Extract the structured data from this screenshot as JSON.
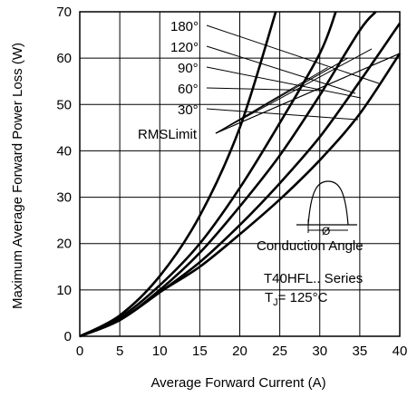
{
  "chart_data": {
    "type": "line",
    "title": "",
    "xlabel": "Average Forward Current (A)",
    "ylabel": "Maximum Average Forward Power Loss (W)",
    "xlim": [
      0,
      40
    ],
    "ylim": [
      0,
      70
    ],
    "x_ticks": [
      0,
      5,
      10,
      15,
      20,
      25,
      30,
      35,
      40
    ],
    "y_ticks": [
      0,
      10,
      20,
      30,
      40,
      50,
      60,
      70
    ],
    "grid": true,
    "series": [
      {
        "name": "180°",
        "x": [
          0,
          5,
          10,
          15,
          20,
          24.5
        ],
        "y": [
          0,
          4.5,
          13,
          26,
          45,
          70
        ]
      },
      {
        "name": "120°",
        "x": [
          0,
          5,
          10,
          15,
          20,
          25,
          30,
          32
        ],
        "y": [
          0,
          4,
          11,
          20,
          32,
          46,
          61,
          70
        ]
      },
      {
        "name": "90°",
        "x": [
          0,
          5,
          10,
          15,
          20,
          25,
          30,
          35,
          37
        ],
        "y": [
          0,
          3.5,
          10,
          18,
          28,
          39,
          52,
          66,
          70
        ]
      },
      {
        "name": "60°",
        "x": [
          0,
          5,
          10,
          15,
          20,
          25,
          30,
          35,
          40
        ],
        "y": [
          0,
          3.5,
          9.5,
          16,
          24,
          33,
          43,
          55,
          67.5
        ]
      },
      {
        "name": "30°",
        "x": [
          0,
          5,
          10,
          15,
          20,
          25,
          30,
          35,
          40
        ],
        "y": [
          0,
          3.5,
          9.5,
          15,
          22,
          29.5,
          38,
          48,
          61
        ]
      }
    ],
    "rms_limit_label": "RMSLimit",
    "annotations": {
      "series_name": "T40HFL.. Series",
      "tj_prefix": "T",
      "tj_sub": "J",
      "tj_value": "= 125°C",
      "inset_label": "Conduction Angle",
      "inset_symbol": "Ø"
    }
  }
}
